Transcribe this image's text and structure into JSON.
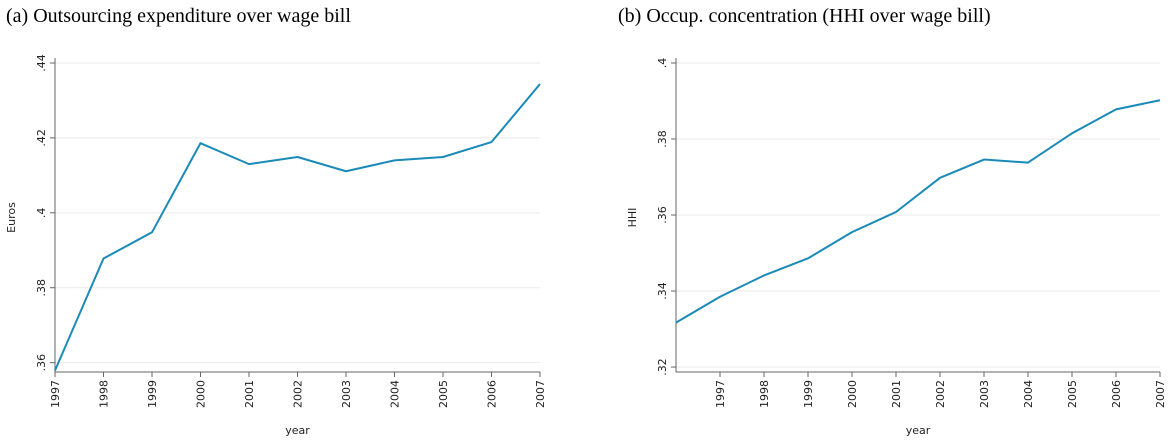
{
  "chart_data": [
    {
      "type": "line",
      "title": "(a) Outsourcing expenditure over wage bill",
      "xlabel": "year",
      "ylabel": "Euros",
      "x": [
        1997,
        1998,
        1999,
        2000,
        2001,
        2002,
        2003,
        2004,
        2005,
        2006,
        2007
      ],
      "series": [
        {
          "name": "Euros",
          "color": "#1a8ab8",
          "values": [
            0.3579,
            0.3878,
            0.3948,
            0.4186,
            0.413,
            0.4149,
            0.4111,
            0.414,
            0.4149,
            0.4189,
            0.4344
          ]
        }
      ],
      "xlim": [
        1997,
        2007
      ],
      "xticks": [
        1997,
        1998,
        1999,
        2000,
        2001,
        2002,
        2003,
        2004,
        2005,
        2006,
        2007
      ],
      "ylim": [
        0.3575,
        0.44
      ],
      "yticks": [
        {
          "value": 0.36,
          "label": ".36"
        },
        {
          "value": 0.38,
          "label": ".38"
        },
        {
          "value": 0.4,
          "label": ".4"
        },
        {
          "value": 0.42,
          "label": ".42"
        },
        {
          "value": 0.44,
          "label": ".44"
        }
      ],
      "grid": true
    },
    {
      "type": "line",
      "title": "(b) Occup. concentration (HHI over wage bill)",
      "xlabel": "year",
      "ylabel": "HHI",
      "x": [
        1996,
        1997,
        1998,
        1999,
        2000,
        2001,
        2002,
        2003,
        2004,
        2005,
        2006,
        2007
      ],
      "series": [
        {
          "name": "HHI",
          "color": "#1a8ab8",
          "values": [
            0.3317,
            0.3385,
            0.3441,
            0.3486,
            0.3555,
            0.3608,
            0.3698,
            0.3746,
            0.3738,
            0.3815,
            0.3878,
            0.3902
          ]
        }
      ],
      "xlim": [
        1996,
        2007
      ],
      "xticks": [
        1997,
        1998,
        1999,
        2000,
        2001,
        2002,
        2003,
        2004,
        2005,
        2006,
        2007
      ],
      "ylim": [
        0.3187,
        0.4
      ],
      "yticks": [
        {
          "value": 0.32,
          "label": ".32"
        },
        {
          "value": 0.34,
          "label": ".34"
        },
        {
          "value": 0.36,
          "label": ".36"
        },
        {
          "value": 0.38,
          "label": ".38"
        },
        {
          "value": 0.4,
          "label": ".4"
        }
      ],
      "grid": true
    }
  ]
}
